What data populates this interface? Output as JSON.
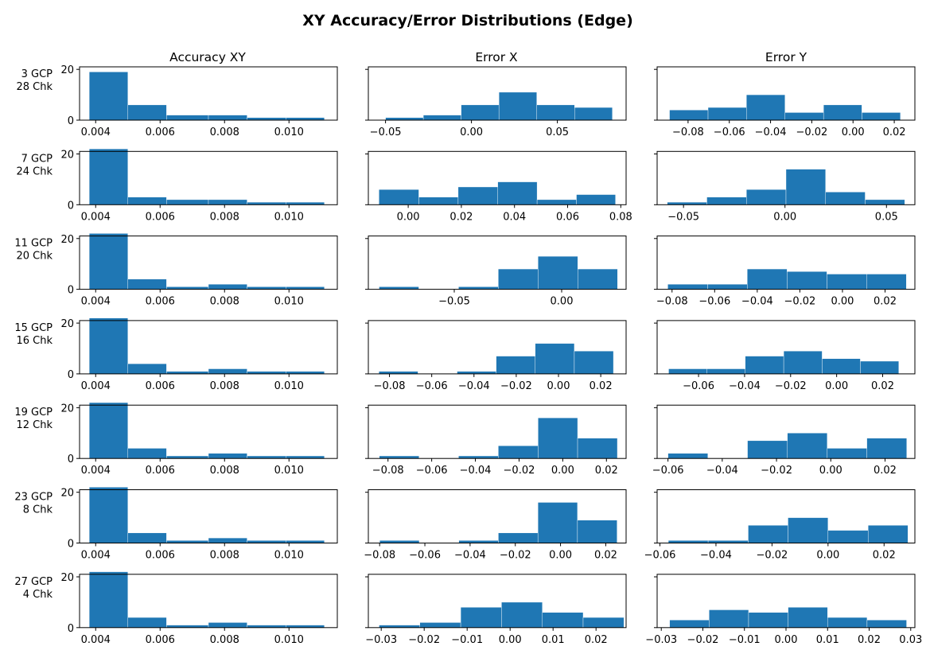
{
  "title": "XY Accuracy/Error Distributions (Edge)",
  "columns": [
    "Accuracy XY",
    "Error X",
    "Error Y"
  ],
  "bar_color": "#1f77b4",
  "chart_data": [
    {
      "type": "bar",
      "row": 0,
      "col": 0,
      "row_label": [
        "3 GCP",
        "28 Chk"
      ],
      "column_title": "Accuracy XY",
      "xlim": [
        0.0035,
        0.0115
      ],
      "ylim": [
        0,
        21
      ],
      "bin_edges": [
        0.0038,
        0.005,
        0.0062,
        0.0075,
        0.0087,
        0.0099,
        0.0111
      ],
      "values": [
        19,
        6,
        2,
        2,
        1,
        1
      ],
      "xticks": [
        0.004,
        0.006,
        0.008,
        0.01
      ],
      "xtick_labels": [
        "0.004",
        "0.006",
        "0.008",
        "0.010"
      ],
      "yticks": [
        0,
        20
      ],
      "ytick_labels": [
        "0",
        "20"
      ]
    },
    {
      "type": "bar",
      "row": 0,
      "col": 1,
      "row_label": [
        "3 GCP",
        "28 Chk"
      ],
      "column_title": "Error X",
      "xlim": [
        -0.06,
        0.09
      ],
      "ylim": [
        0,
        21
      ],
      "bin_edges": [
        -0.05,
        -0.028,
        -0.006,
        0.016,
        0.038,
        0.06,
        0.082
      ],
      "values": [
        1,
        2,
        6,
        11,
        6,
        5
      ],
      "xticks": [
        -0.05,
        0,
        0.05
      ],
      "xtick_labels": [
        "−0.05",
        "0.00",
        "0.05"
      ],
      "yticks": [
        0,
        20
      ],
      "ytick_labels": [
        "",
        ""
      ]
    },
    {
      "type": "bar",
      "row": 0,
      "col": 2,
      "row_label": [
        "3 GCP",
        "28 Chk"
      ],
      "column_title": "Error Y",
      "xlim": [
        -0.095,
        0.03
      ],
      "ylim": [
        0,
        21
      ],
      "bin_edges": [
        -0.089,
        -0.0703,
        -0.0517,
        -0.033,
        -0.0143,
        0.0043,
        0.023
      ],
      "values": [
        4,
        5,
        10,
        3,
        6,
        3
      ],
      "xticks": [
        -0.08,
        -0.06,
        -0.04,
        -0.02,
        0,
        0.02
      ],
      "xtick_labels": [
        "−0.08",
        "−0.06",
        "−0.04",
        "−0.02",
        "0.00",
        "0.02"
      ],
      "yticks": [
        0,
        20
      ],
      "ytick_labels": [
        "",
        ""
      ]
    },
    {
      "type": "bar",
      "row": 1,
      "col": 0,
      "row_label": [
        "7 GCP",
        "24 Chk"
      ],
      "column_title": "Accuracy XY",
      "xlim": [
        0.0035,
        0.0115
      ],
      "ylim": [
        0,
        21
      ],
      "bin_edges": [
        0.0038,
        0.005,
        0.0062,
        0.0075,
        0.0087,
        0.0099,
        0.0111
      ],
      "values": [
        22,
        3,
        2,
        2,
        1,
        1
      ],
      "xticks": [
        0.004,
        0.006,
        0.008,
        0.01
      ],
      "xtick_labels": [
        "0.004",
        "0.006",
        "0.008",
        "0.010"
      ],
      "yticks": [
        0,
        20
      ],
      "ytick_labels": [
        "0",
        "20"
      ]
    },
    {
      "type": "bar",
      "row": 1,
      "col": 1,
      "row_label": [
        "7 GCP",
        "24 Chk"
      ],
      "column_title": "Error X",
      "xlim": [
        -0.015,
        0.082
      ],
      "ylim": [
        0,
        21
      ],
      "bin_edges": [
        -0.011,
        0.004,
        0.0188,
        0.0337,
        0.0485,
        0.0633,
        0.078
      ],
      "values": [
        6,
        3,
        7,
        9,
        2,
        4
      ],
      "xticks": [
        0,
        0.02,
        0.04,
        0.06,
        0.08
      ],
      "xtick_labels": [
        "0.00",
        "0.02",
        "0.04",
        "0.06",
        "0.08"
      ],
      "yticks": [
        0,
        20
      ],
      "ytick_labels": [
        "",
        ""
      ]
    },
    {
      "type": "bar",
      "row": 1,
      "col": 2,
      "row_label": [
        "7 GCP",
        "24 Chk"
      ],
      "column_title": "Error Y",
      "xlim": [
        -0.063,
        0.064
      ],
      "ylim": [
        0,
        21
      ],
      "bin_edges": [
        -0.058,
        -0.0385,
        -0.019,
        0.0005,
        0.02,
        0.0395,
        0.059
      ],
      "values": [
        1,
        3,
        6,
        14,
        5,
        2
      ],
      "xticks": [
        -0.05,
        0,
        0.05
      ],
      "xtick_labels": [
        "−0.05",
        "0.00",
        "0.05"
      ],
      "yticks": [
        0,
        20
      ],
      "ytick_labels": [
        "",
        ""
      ]
    },
    {
      "type": "bar",
      "row": 2,
      "col": 0,
      "row_label": [
        "11 GCP",
        "20 Chk"
      ],
      "column_title": "Accuracy XY",
      "xlim": [
        0.0035,
        0.0115
      ],
      "ylim": [
        0,
        21
      ],
      "bin_edges": [
        0.0038,
        0.005,
        0.0062,
        0.0075,
        0.0087,
        0.0099,
        0.0111
      ],
      "values": [
        22,
        4,
        1,
        2,
        1,
        1
      ],
      "xticks": [
        0.004,
        0.006,
        0.008,
        0.01
      ],
      "xtick_labels": [
        "0.004",
        "0.006",
        "0.008",
        "0.010"
      ],
      "yticks": [
        0,
        20
      ],
      "ytick_labels": [
        "0",
        "20"
      ]
    },
    {
      "type": "bar",
      "row": 2,
      "col": 1,
      "row_label": [
        "11 GCP",
        "20 Chk"
      ],
      "column_title": "Error X",
      "xlim": [
        -0.09,
        0.03
      ],
      "ylim": [
        0,
        21
      ],
      "bin_edges": [
        -0.085,
        -0.0665,
        -0.048,
        -0.0295,
        -0.011,
        0.0075,
        0.026
      ],
      "values": [
        1,
        0,
        1,
        8,
        13,
        8
      ],
      "xticks": [
        -0.05,
        0
      ],
      "xtick_labels": [
        "−0.05",
        "0.00"
      ],
      "yticks": [
        0,
        20
      ],
      "ytick_labels": [
        "",
        ""
      ]
    },
    {
      "type": "bar",
      "row": 2,
      "col": 2,
      "row_label": [
        "11 GCP",
        "20 Chk"
      ],
      "column_title": "Error Y",
      "xlim": [
        -0.087,
        0.034
      ],
      "ylim": [
        0,
        21
      ],
      "bin_edges": [
        -0.082,
        -0.0633,
        -0.0447,
        -0.026,
        -0.0073,
        0.0113,
        0.03
      ],
      "values": [
        2,
        2,
        8,
        7,
        6,
        6
      ],
      "xticks": [
        -0.08,
        -0.06,
        -0.04,
        -0.02,
        0,
        0.02
      ],
      "xtick_labels": [
        "−0.08",
        "−0.06",
        "−0.04",
        "−0.02",
        "0.00",
        "0.02"
      ],
      "yticks": [
        0,
        20
      ],
      "ytick_labels": [
        "",
        ""
      ]
    },
    {
      "type": "bar",
      "row": 3,
      "col": 0,
      "row_label": [
        "15 GCP",
        "16 Chk"
      ],
      "column_title": "Accuracy XY",
      "xlim": [
        0.0035,
        0.0115
      ],
      "ylim": [
        0,
        21
      ],
      "bin_edges": [
        0.0038,
        0.005,
        0.0062,
        0.0075,
        0.0087,
        0.0099,
        0.0111
      ],
      "values": [
        22,
        4,
        1,
        2,
        1,
        1
      ],
      "xticks": [
        0.004,
        0.006,
        0.008,
        0.01
      ],
      "xtick_labels": [
        "0.004",
        "0.006",
        "0.008",
        "0.010"
      ],
      "yticks": [
        0,
        20
      ],
      "ytick_labels": [
        "0",
        "20"
      ]
    },
    {
      "type": "bar",
      "row": 3,
      "col": 1,
      "row_label": [
        "15 GCP",
        "16 Chk"
      ],
      "column_title": "Error X",
      "xlim": [
        -0.09,
        0.032
      ],
      "ylim": [
        0,
        21
      ],
      "bin_edges": [
        -0.085,
        -0.0665,
        -0.048,
        -0.0295,
        -0.011,
        0.0075,
        0.026
      ],
      "values": [
        1,
        0,
        1,
        7,
        12,
        9
      ],
      "xticks": [
        -0.08,
        -0.06,
        -0.04,
        -0.02,
        0,
        0.02
      ],
      "xtick_labels": [
        "−0.08",
        "−0.06",
        "−0.04",
        "−0.02",
        "0.00",
        "0.02"
      ],
      "yticks": [
        0,
        20
      ],
      "ytick_labels": [
        "",
        ""
      ]
    },
    {
      "type": "bar",
      "row": 3,
      "col": 2,
      "row_label": [
        "15 GCP",
        "16 Chk"
      ],
      "column_title": "Error Y",
      "xlim": [
        -0.078,
        0.034
      ],
      "ylim": [
        0,
        21
      ],
      "bin_edges": [
        -0.073,
        -0.0563,
        -0.0397,
        -0.023,
        -0.0063,
        0.0103,
        0.027
      ],
      "values": [
        2,
        2,
        7,
        9,
        6,
        5
      ],
      "xticks": [
        -0.06,
        -0.04,
        -0.02,
        0,
        0.02
      ],
      "xtick_labels": [
        "−0.06",
        "−0.04",
        "−0.02",
        "0.00",
        "0.02"
      ],
      "yticks": [
        0,
        20
      ],
      "ytick_labels": [
        "",
        ""
      ]
    },
    {
      "type": "bar",
      "row": 4,
      "col": 0,
      "row_label": [
        "19 GCP",
        "12 Chk"
      ],
      "column_title": "Accuracy XY",
      "xlim": [
        0.0035,
        0.0115
      ],
      "ylim": [
        0,
        21
      ],
      "bin_edges": [
        0.0038,
        0.005,
        0.0062,
        0.0075,
        0.0087,
        0.0099,
        0.0111
      ],
      "values": [
        22,
        4,
        1,
        2,
        1,
        1
      ],
      "xticks": [
        0.004,
        0.006,
        0.008,
        0.01
      ],
      "xtick_labels": [
        "0.004",
        "0.006",
        "0.008",
        "0.010"
      ],
      "yticks": [
        0,
        20
      ],
      "ytick_labels": [
        "0",
        "20"
      ]
    },
    {
      "type": "bar",
      "row": 4,
      "col": 1,
      "row_label": [
        "19 GCP",
        "12 Chk"
      ],
      "column_title": "Error X",
      "xlim": [
        -0.089,
        0.029
      ],
      "ylim": [
        0,
        21
      ],
      "bin_edges": [
        -0.084,
        -0.0658,
        -0.0477,
        -0.0295,
        -0.0113,
        0.0068,
        0.025
      ],
      "values": [
        1,
        0,
        1,
        5,
        16,
        8
      ],
      "xticks": [
        -0.08,
        -0.06,
        -0.04,
        -0.02,
        0,
        0.02
      ],
      "xtick_labels": [
        "−0.08",
        "−0.06",
        "−0.04",
        "−0.02",
        "0.00",
        "0.02"
      ],
      "yticks": [
        0,
        20
      ],
      "ytick_labels": [
        "",
        ""
      ]
    },
    {
      "type": "bar",
      "row": 4,
      "col": 2,
      "row_label": [
        "19 GCP",
        "12 Chk"
      ],
      "column_title": "Error Y",
      "xlim": [
        -0.064,
        0.031
      ],
      "ylim": [
        0,
        21
      ],
      "bin_edges": [
        -0.06,
        -0.0453,
        -0.0307,
        -0.016,
        -0.0013,
        0.0133,
        0.028
      ],
      "values": [
        2,
        0,
        7,
        10,
        4,
        8
      ],
      "xticks": [
        -0.06,
        -0.04,
        -0.02,
        0,
        0.02
      ],
      "xtick_labels": [
        "−0.06",
        "−0.04",
        "−0.02",
        "0.00",
        "0.02"
      ],
      "yticks": [
        0,
        20
      ],
      "ytick_labels": [
        "",
        ""
      ]
    },
    {
      "type": "bar",
      "row": 5,
      "col": 0,
      "row_label": [
        "23 GCP",
        "8 Chk"
      ],
      "column_title": "Accuracy XY",
      "xlim": [
        0.0035,
        0.0115
      ],
      "ylim": [
        0,
        21
      ],
      "bin_edges": [
        0.0038,
        0.005,
        0.0062,
        0.0075,
        0.0087,
        0.0099,
        0.0111
      ],
      "values": [
        22,
        4,
        1,
        2,
        1,
        1
      ],
      "xticks": [
        0.004,
        0.006,
        0.008,
        0.01
      ],
      "xtick_labels": [
        "0.004",
        "0.006",
        "0.008",
        "0.010"
      ],
      "yticks": [
        0,
        20
      ],
      "ytick_labels": [
        "0",
        "20"
      ]
    },
    {
      "type": "bar",
      "row": 5,
      "col": 1,
      "row_label": [
        "23 GCP",
        "8 Chk"
      ],
      "column_title": "Error X",
      "xlim": [
        -0.085,
        0.029
      ],
      "ylim": [
        0,
        21
      ],
      "bin_edges": [
        -0.08,
        -0.0625,
        -0.045,
        -0.0275,
        -0.01,
        0.0075,
        0.025
      ],
      "values": [
        1,
        0,
        1,
        4,
        16,
        9
      ],
      "xticks": [
        -0.08,
        -0.06,
        -0.04,
        -0.02,
        0,
        0.02
      ],
      "xtick_labels": [
        "−0.08",
        "−0.06",
        "−0.04",
        "−0.02",
        "0.00",
        "0.02"
      ],
      "yticks": [
        0,
        20
      ],
      "ytick_labels": [
        "",
        ""
      ]
    },
    {
      "type": "bar",
      "row": 5,
      "col": 2,
      "row_label": [
        "23 GCP",
        "8 Chk"
      ],
      "column_title": "Error Y",
      "xlim": [
        -0.061,
        0.031
      ],
      "ylim": [
        0,
        21
      ],
      "bin_edges": [
        -0.057,
        -0.0428,
        -0.0285,
        -0.0143,
        0,
        0.0143,
        0.0285
      ],
      "values": [
        1,
        1,
        7,
        10,
        5,
        7
      ],
      "xticks": [
        -0.06,
        -0.04,
        -0.02,
        0,
        0.02
      ],
      "xtick_labels": [
        "−0.06",
        "−0.04",
        "−0.02",
        "0.00",
        "0.02"
      ],
      "yticks": [
        0,
        20
      ],
      "ytick_labels": [
        "",
        ""
      ]
    },
    {
      "type": "bar",
      "row": 6,
      "col": 0,
      "row_label": [
        "27 GCP",
        "4 Chk"
      ],
      "column_title": "Accuracy XY",
      "xlim": [
        0.0035,
        0.0115
      ],
      "ylim": [
        0,
        21
      ],
      "bin_edges": [
        0.0038,
        0.005,
        0.0062,
        0.0075,
        0.0087,
        0.0099,
        0.0111
      ],
      "values": [
        22,
        4,
        1,
        2,
        1,
        1
      ],
      "xticks": [
        0.004,
        0.006,
        0.008,
        0.01
      ],
      "xtick_labels": [
        "0.004",
        "0.006",
        "0.008",
        "0.010"
      ],
      "yticks": [
        0,
        20
      ],
      "ytick_labels": [
        "0",
        "20"
      ]
    },
    {
      "type": "bar",
      "row": 6,
      "col": 1,
      "row_label": [
        "27 GCP",
        "4 Chk"
      ],
      "column_title": "Error X",
      "xlim": [
        -0.033,
        0.027
      ],
      "ylim": [
        0,
        21
      ],
      "bin_edges": [
        -0.0305,
        -0.021,
        -0.0115,
        -0.002,
        0.0075,
        0.017,
        0.0265
      ],
      "values": [
        1,
        2,
        8,
        10,
        6,
        4
      ],
      "xticks": [
        -0.03,
        -0.02,
        -0.01,
        0,
        0.01,
        0.02
      ],
      "xtick_labels": [
        "−0.03",
        "−0.02",
        "−0.01",
        "0.00",
        "0.01",
        "0.02"
      ],
      "yticks": [
        0,
        20
      ],
      "ytick_labels": [
        "",
        ""
      ]
    },
    {
      "type": "bar",
      "row": 6,
      "col": 2,
      "row_label": [
        "27 GCP",
        "4 Chk"
      ],
      "column_title": "Error Y",
      "xlim": [
        -0.031,
        0.031
      ],
      "ylim": [
        0,
        21
      ],
      "bin_edges": [
        -0.028,
        -0.0185,
        -0.009,
        0.0005,
        0.01,
        0.0195,
        0.029
      ],
      "values": [
        3,
        7,
        6,
        8,
        4,
        3
      ],
      "xticks": [
        -0.03,
        -0.02,
        -0.01,
        0,
        0.01,
        0.02,
        0.03
      ],
      "xtick_labels": [
        "−0.03",
        "−0.02",
        "−0.01",
        "0.00",
        "0.01",
        "0.02",
        "0.03"
      ],
      "yticks": [
        0,
        20
      ],
      "ytick_labels": [
        "",
        ""
      ]
    }
  ]
}
